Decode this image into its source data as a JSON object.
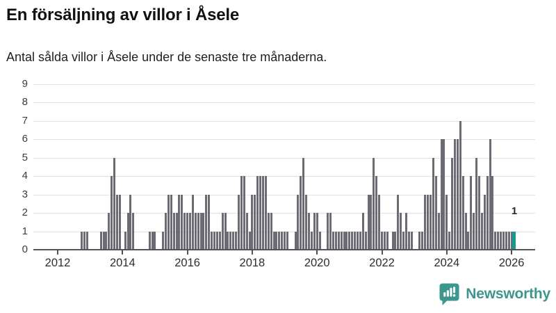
{
  "header": {
    "title": "En försäljning av villor i Åsele",
    "subtitle": "Antal sålda villor i Åsele under de senaste tre månaderna."
  },
  "chart_data": {
    "type": "bar",
    "title": "En försäljning av villor i Åsele",
    "subtitle": "Antal sålda villor i Åsele under de senaste tre månaderna.",
    "xlabel": "",
    "ylabel": "",
    "ylim": [
      0,
      9
    ],
    "yticks": [
      0,
      1,
      2,
      3,
      4,
      5,
      6,
      7,
      8,
      9
    ],
    "xticks": [
      2012,
      2014,
      2016,
      2018,
      2020,
      2022,
      2024,
      2026
    ],
    "grid": "horizontal",
    "legend": "none",
    "bar_color": "#6c6b73",
    "highlight_color": "#169a8f",
    "series_note": "monthly rolling 3-month count of houses sold; months not listed are 0",
    "series_monthly": [
      [
        "2012-10",
        1
      ],
      [
        "2012-11",
        1
      ],
      [
        "2012-12",
        1
      ],
      [
        "2013-05",
        1
      ],
      [
        "2013-06",
        1
      ],
      [
        "2013-07",
        1
      ],
      [
        "2013-08",
        2
      ],
      [
        "2013-09",
        4
      ],
      [
        "2013-10",
        5
      ],
      [
        "2013-11",
        3
      ],
      [
        "2013-12",
        3
      ],
      [
        "2014-02",
        1
      ],
      [
        "2014-03",
        2
      ],
      [
        "2014-04",
        3
      ],
      [
        "2014-05",
        2
      ],
      [
        "2014-11",
        1
      ],
      [
        "2014-12",
        1
      ],
      [
        "2015-01",
        1
      ],
      [
        "2015-04",
        1
      ],
      [
        "2015-05",
        2
      ],
      [
        "2015-06",
        3
      ],
      [
        "2015-07",
        3
      ],
      [
        "2015-08",
        2
      ],
      [
        "2015-09",
        2
      ],
      [
        "2015-10",
        3
      ],
      [
        "2015-11",
        3
      ],
      [
        "2015-12",
        2
      ],
      [
        "2016-01",
        2
      ],
      [
        "2016-02",
        2
      ],
      [
        "2016-03",
        3
      ],
      [
        "2016-04",
        2
      ],
      [
        "2016-05",
        2
      ],
      [
        "2016-06",
        2
      ],
      [
        "2016-07",
        2
      ],
      [
        "2016-08",
        3
      ],
      [
        "2016-09",
        3
      ],
      [
        "2016-10",
        1
      ],
      [
        "2016-11",
        1
      ],
      [
        "2016-12",
        1
      ],
      [
        "2017-01",
        1
      ],
      [
        "2017-02",
        2
      ],
      [
        "2017-03",
        2
      ],
      [
        "2017-04",
        1
      ],
      [
        "2017-05",
        1
      ],
      [
        "2017-06",
        1
      ],
      [
        "2017-07",
        1
      ],
      [
        "2017-08",
        3
      ],
      [
        "2017-09",
        4
      ],
      [
        "2017-10",
        4
      ],
      [
        "2017-11",
        2
      ],
      [
        "2017-12",
        1
      ],
      [
        "2018-01",
        3
      ],
      [
        "2018-02",
        3
      ],
      [
        "2018-03",
        4
      ],
      [
        "2018-04",
        4
      ],
      [
        "2018-05",
        4
      ],
      [
        "2018-06",
        4
      ],
      [
        "2018-07",
        2
      ],
      [
        "2018-08",
        2
      ],
      [
        "2018-09",
        1
      ],
      [
        "2018-10",
        1
      ],
      [
        "2018-11",
        1
      ],
      [
        "2018-12",
        1
      ],
      [
        "2019-01",
        1
      ],
      [
        "2019-02",
        1
      ],
      [
        "2019-05",
        1
      ],
      [
        "2019-06",
        3
      ],
      [
        "2019-07",
        4
      ],
      [
        "2019-08",
        5
      ],
      [
        "2019-09",
        3
      ],
      [
        "2019-10",
        2
      ],
      [
        "2019-11",
        1
      ],
      [
        "2019-12",
        2
      ],
      [
        "2020-01",
        2
      ],
      [
        "2020-02",
        1
      ],
      [
        "2020-05",
        2
      ],
      [
        "2020-06",
        2
      ],
      [
        "2020-07",
        1
      ],
      [
        "2020-08",
        1
      ],
      [
        "2020-09",
        1
      ],
      [
        "2020-10",
        1
      ],
      [
        "2020-11",
        1
      ],
      [
        "2020-12",
        1
      ],
      [
        "2021-01",
        1
      ],
      [
        "2021-02",
        1
      ],
      [
        "2021-03",
        1
      ],
      [
        "2021-04",
        1
      ],
      [
        "2021-05",
        1
      ],
      [
        "2021-06",
        2
      ],
      [
        "2021-07",
        1
      ],
      [
        "2021-08",
        3
      ],
      [
        "2021-09",
        3
      ],
      [
        "2021-10",
        5
      ],
      [
        "2021-11",
        4
      ],
      [
        "2021-12",
        3
      ],
      [
        "2022-01",
        1
      ],
      [
        "2022-02",
        1
      ],
      [
        "2022-03",
        1
      ],
      [
        "2022-05",
        1
      ],
      [
        "2022-06",
        1
      ],
      [
        "2022-07",
        3
      ],
      [
        "2022-08",
        2
      ],
      [
        "2022-09",
        1
      ],
      [
        "2022-10",
        2
      ],
      [
        "2022-11",
        1
      ],
      [
        "2022-12",
        1
      ],
      [
        "2023-03",
        1
      ],
      [
        "2023-04",
        1
      ],
      [
        "2023-05",
        3
      ],
      [
        "2023-06",
        3
      ],
      [
        "2023-07",
        3
      ],
      [
        "2023-08",
        5
      ],
      [
        "2023-09",
        4
      ],
      [
        "2023-10",
        2
      ],
      [
        "2023-11",
        6
      ],
      [
        "2023-12",
        6
      ],
      [
        "2024-01",
        3
      ],
      [
        "2024-02",
        1
      ],
      [
        "2024-03",
        5
      ],
      [
        "2024-04",
        6
      ],
      [
        "2024-05",
        6
      ],
      [
        "2024-06",
        7
      ],
      [
        "2024-07",
        4
      ],
      [
        "2024-08",
        2
      ],
      [
        "2024-09",
        1
      ],
      [
        "2024-10",
        4
      ],
      [
        "2024-11",
        2
      ],
      [
        "2024-12",
        5
      ],
      [
        "2025-01",
        4
      ],
      [
        "2025-02",
        2
      ],
      [
        "2025-03",
        3
      ],
      [
        "2025-04",
        4
      ],
      [
        "2025-05",
        6
      ],
      [
        "2025-06",
        4
      ],
      [
        "2025-07",
        1
      ],
      [
        "2025-08",
        1
      ],
      [
        "2025-09",
        1
      ],
      [
        "2025-10",
        1
      ],
      [
        "2025-11",
        1
      ],
      [
        "2025-12",
        1
      ],
      [
        "2026-01",
        1
      ],
      [
        "2026-02",
        1
      ]
    ],
    "highlight": {
      "month": "2026-02",
      "value": 1
    },
    "annotation": {
      "text": "1",
      "month": "2026-02"
    }
  },
  "footer": {
    "brand": "Newsworthy",
    "brand_color": "#3d968d"
  }
}
